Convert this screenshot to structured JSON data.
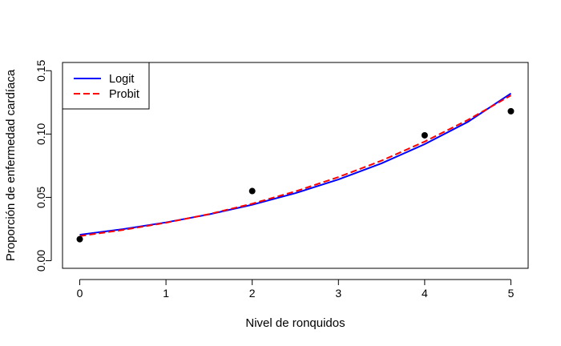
{
  "chart_data": {
    "type": "scatter",
    "xlabel": "Nivel de ronquidos",
    "ylabel": "Proporción de enfermedad cardíaca",
    "xlim": [
      -0.2,
      5.2
    ],
    "ylim": [
      -0.006,
      0.1565
    ],
    "x_ticks": [
      0,
      1,
      2,
      3,
      4,
      5
    ],
    "x_tick_labels": [
      "0",
      "1",
      "2",
      "3",
      "4",
      "5"
    ],
    "y_ticks": [
      0.0,
      0.05,
      0.1,
      0.15
    ],
    "y_tick_labels": [
      "0.00",
      "0.05",
      "0.10",
      "0.15"
    ],
    "points": {
      "x": [
        0,
        2,
        4,
        5
      ],
      "y": [
        0.017,
        0.055,
        0.099,
        0.118
      ],
      "color": "#000000"
    },
    "series": [
      {
        "name": "Logit",
        "color": "#0000ff",
        "dash": "solid",
        "x": [
          0,
          0.5,
          1,
          1.5,
          2,
          2.5,
          3,
          3.5,
          4,
          4.5,
          5
        ],
        "y": [
          0.0205,
          0.0249,
          0.0302,
          0.0366,
          0.0442,
          0.0533,
          0.0641,
          0.0769,
          0.092,
          0.1096,
          0.132
        ]
      },
      {
        "name": "Probit",
        "color": "#ff0000",
        "dash": "dashed",
        "x": [
          0,
          0.5,
          1,
          1.5,
          2,
          2.5,
          3,
          3.5,
          4,
          4.5,
          5
        ],
        "y": [
          0.0195,
          0.0243,
          0.03,
          0.0368,
          0.045,
          0.0547,
          0.066,
          0.079,
          0.094,
          0.1111,
          0.1305
        ]
      }
    ],
    "legend": {
      "position": "top-left"
    },
    "grid": false
  }
}
